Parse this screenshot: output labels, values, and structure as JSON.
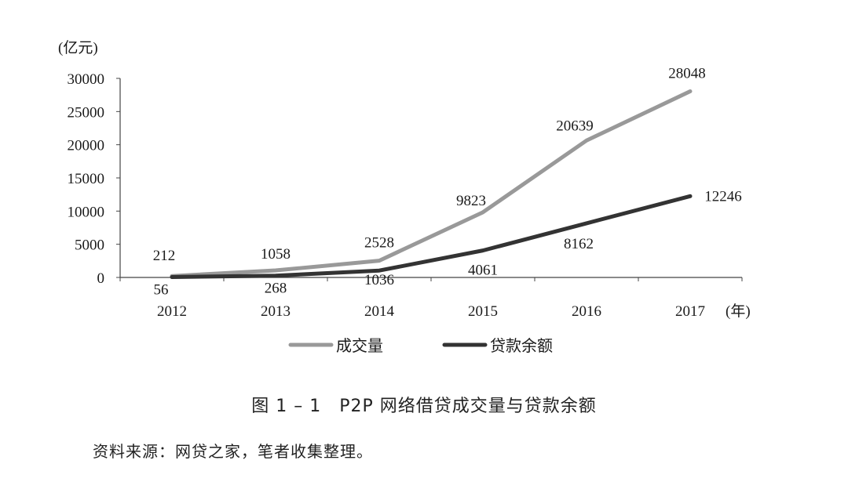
{
  "chart_data": {
    "type": "line",
    "y_unit": "(亿元)",
    "x_unit": "(年)",
    "x": [
      "2012",
      "2013",
      "2014",
      "2015",
      "2016",
      "2017"
    ],
    "ylim": [
      0,
      30000
    ],
    "yticks": [
      0,
      5000,
      10000,
      15000,
      20000,
      25000,
      30000
    ],
    "grid": false,
    "legend_position": "bottom",
    "series": [
      {
        "name": "成交量",
        "values": [
          212,
          1058,
          2528,
          9823,
          20639,
          28048
        ],
        "color": "#999999"
      },
      {
        "name": "贷款余额",
        "values": [
          56,
          268,
          1036,
          4061,
          8162,
          12246
        ],
        "color": "#333333"
      }
    ]
  },
  "caption": "图 1 – 1　P2P 网络借贷成交量与贷款余额",
  "source": "资料来源：网贷之家，笔者收集整理。"
}
